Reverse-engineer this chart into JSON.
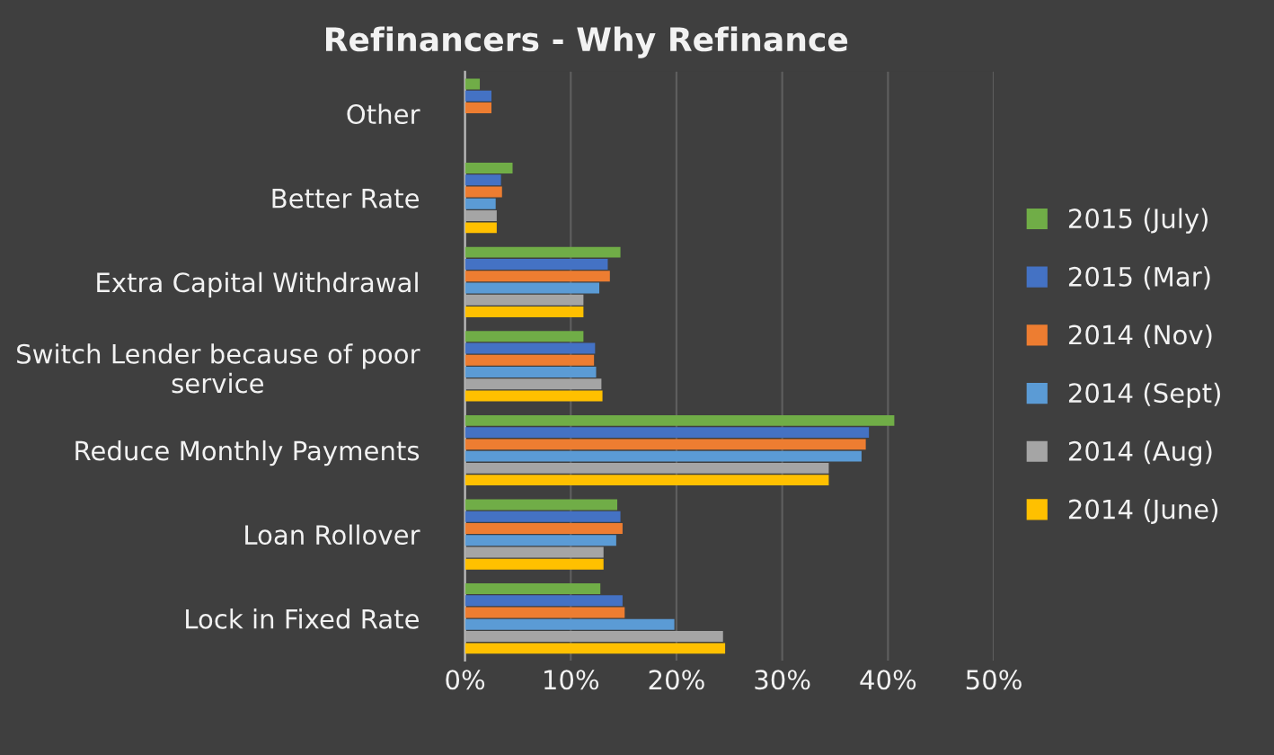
{
  "chart_data": {
    "type": "bar",
    "orientation": "horizontal",
    "title": "Refinancers - Why Refinance",
    "categories": [
      "Other",
      "Better Rate",
      "Extra Capital Withdrawal",
      "Switch Lender because of poor\nservice",
      "Reduce Monthly Payments",
      "Loan Rollover",
      "Lock in Fixed Rate"
    ],
    "series": [
      {
        "name": "2015 (July)",
        "color": "#70ad47",
        "values": [
          1.4,
          4.5,
          14.7,
          11.2,
          40.6,
          14.4,
          12.8
        ]
      },
      {
        "name": "2015 (Mar)",
        "color": "#4472c4",
        "values": [
          2.5,
          3.4,
          13.5,
          12.3,
          38.2,
          14.7,
          14.9
        ]
      },
      {
        "name": "2014 (Nov)",
        "color": "#ed7d31",
        "values": [
          2.5,
          3.5,
          13.7,
          12.2,
          37.9,
          14.9,
          15.1
        ]
      },
      {
        "name": "2014 (Sept)",
        "color": "#5b9bd5",
        "values": [
          0,
          2.9,
          12.7,
          12.4,
          37.5,
          14.3,
          19.8
        ]
      },
      {
        "name": "2014 (Aug)",
        "color": "#a5a5a5",
        "values": [
          0,
          3.0,
          11.2,
          12.9,
          34.4,
          13.1,
          24.4
        ]
      },
      {
        "name": "2014 (June)",
        "color": "#ffc000",
        "values": [
          0,
          3.0,
          11.2,
          13.0,
          34.4,
          13.1,
          24.6
        ]
      }
    ],
    "xlim": [
      0,
      50
    ],
    "xticks": [
      {
        "value": 0,
        "label": "0%"
      },
      {
        "value": 10,
        "label": "10%"
      },
      {
        "value": 20,
        "label": "20%"
      },
      {
        "value": 30,
        "label": "30%"
      },
      {
        "value": 40,
        "label": "40%"
      },
      {
        "value": 50,
        "label": "50%"
      }
    ],
    "grid": "x",
    "legend": "right"
  }
}
